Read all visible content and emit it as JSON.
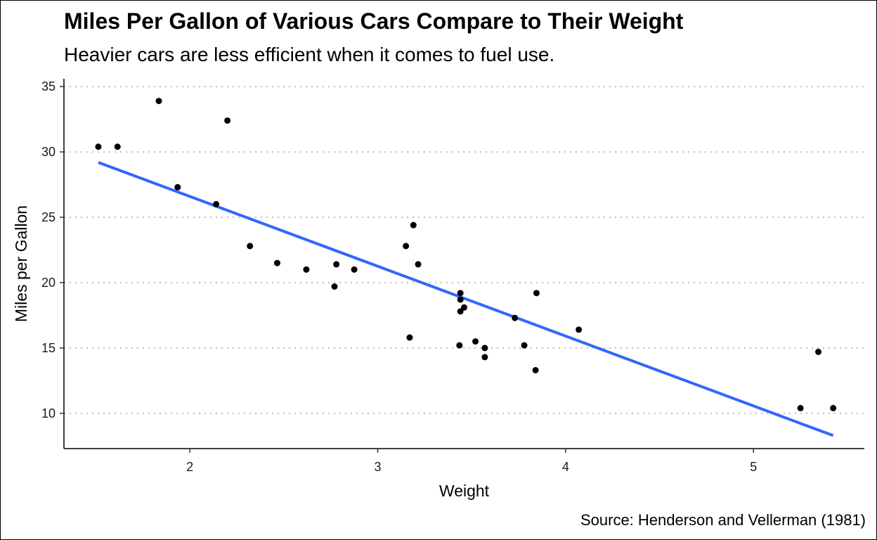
{
  "chart_data": {
    "type": "scatter",
    "title": "Miles Per Gallon of Various Cars Compare to Their Weight",
    "subtitle": "Heavier cars are less efficient when it comes to fuel use.",
    "caption": "Source: Henderson and Vellerman (1981)",
    "xlabel": "Weight",
    "ylabel": "Miles per Gallon",
    "xlim": [
      1.33,
      5.59
    ],
    "ylim": [
      7.3,
      35.6
    ],
    "xticks": [
      2,
      3,
      4,
      5
    ],
    "yticks": [
      10,
      15,
      20,
      25,
      30,
      35
    ],
    "grid": "horizontal-dotted",
    "legend": "none",
    "colors": {
      "points": "#000000",
      "trend": "#3366ff",
      "grid": "#bdbdbd"
    },
    "series": [
      {
        "points": [
          [
            2.62,
            21.0
          ],
          [
            2.875,
            21.0
          ],
          [
            2.32,
            22.8
          ],
          [
            3.215,
            21.4
          ],
          [
            3.44,
            18.7
          ],
          [
            3.46,
            18.1
          ],
          [
            3.57,
            14.3
          ],
          [
            3.19,
            24.4
          ],
          [
            3.15,
            22.8
          ],
          [
            3.44,
            19.2
          ],
          [
            3.44,
            17.8
          ],
          [
            4.07,
            16.4
          ],
          [
            3.73,
            17.3
          ],
          [
            3.78,
            15.2
          ],
          [
            5.25,
            10.4
          ],
          [
            5.424,
            10.4
          ],
          [
            5.345,
            14.7
          ],
          [
            2.2,
            32.4
          ],
          [
            1.615,
            30.4
          ],
          [
            1.835,
            33.9
          ],
          [
            2.465,
            21.5
          ],
          [
            3.52,
            15.5
          ],
          [
            3.435,
            15.2
          ],
          [
            3.84,
            13.3
          ],
          [
            3.845,
            19.2
          ],
          [
            1.935,
            27.3
          ],
          [
            2.14,
            26.0
          ],
          [
            1.513,
            30.4
          ],
          [
            3.17,
            15.8
          ],
          [
            2.77,
            19.7
          ],
          [
            3.57,
            15.0
          ],
          [
            2.78,
            21.4
          ]
        ]
      }
    ],
    "trend_line": {
      "x": [
        1.513,
        5.424
      ],
      "y": [
        29.2,
        8.3
      ]
    }
  }
}
